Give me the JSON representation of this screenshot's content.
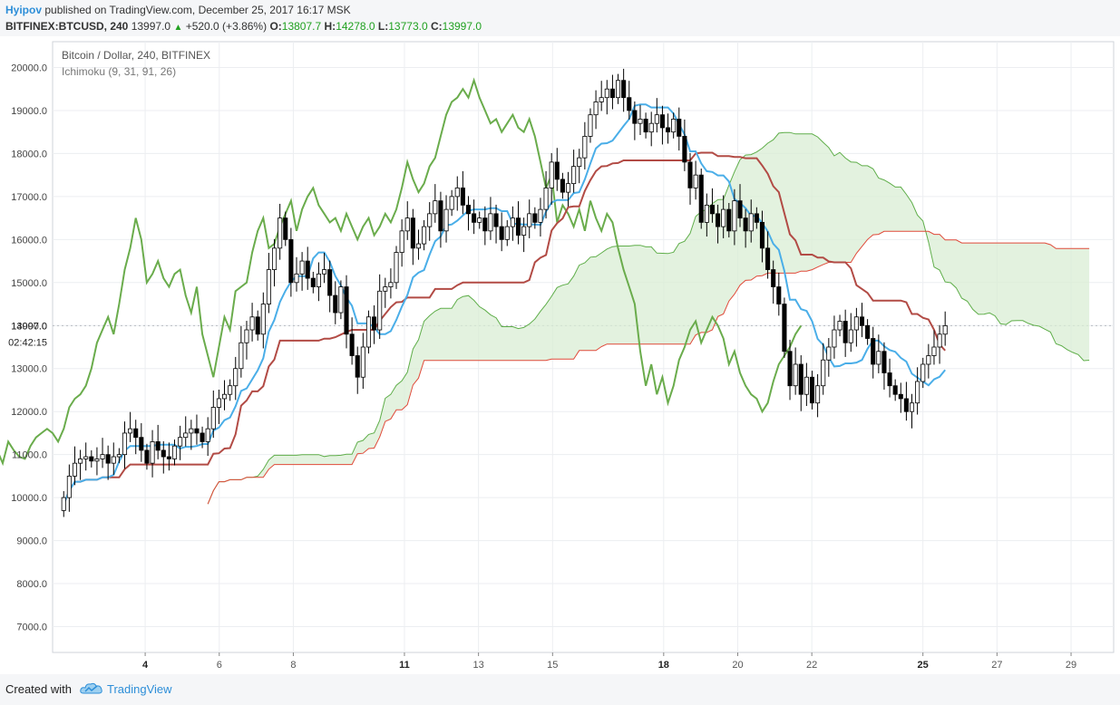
{
  "header": {
    "author": "Hyipov",
    "published": "published on TradingView.com, December 25, 2017 16:17 MSK",
    "symbol": "BITFINEX:BTCUSD, 240",
    "last": "13997.0",
    "change": "+520.0 (+3.86%)",
    "o_label": "O:",
    "o_value": "13807.7",
    "h_label": "H:",
    "h_value": "14278.0",
    "l_label": "L:",
    "l_value": "13773.0",
    "c_label": "C:",
    "c_value": "13997.0"
  },
  "legend": {
    "title": "Bitcoin / Dollar, 240, BITFINEX",
    "indicator": "Ichimoku (9, 31, 91, 26)"
  },
  "footer": {
    "created_with": "Created with",
    "brand": "TradingView"
  },
  "colors": {
    "up_candle": "#ffffff",
    "down_candle": "#000000",
    "tenkan": "#4aaee8",
    "kijun": "#b24b45",
    "chikou": "#6aac4c",
    "span_a": "#5fae4a",
    "span_b": "#e04a3a",
    "cloud_bull": "#d9eed4",
    "cloud_bear": "#fcd4d4"
  },
  "chart_data": {
    "type": "candlestick",
    "title": "Bitcoin / Dollar, 240, BITFINEX",
    "ylim": [
      6400,
      20600
    ],
    "y_ticks": [
      "20000.0",
      "19000.0",
      "18000.0",
      "17000.0",
      "16000.0",
      "15000.0",
      "14000.0",
      "13000.0",
      "12000.0",
      "11000.0",
      "10000.0",
      "9000.0",
      "8000.0",
      "7000.0"
    ],
    "y_tick_values": [
      20000,
      19000,
      18000,
      17000,
      16000,
      15000,
      14000,
      13000,
      12000,
      11000,
      10000,
      9000,
      8000,
      7000
    ],
    "price_label": "13997.0",
    "countdown_label": "02:42:15",
    "x_ticks": [
      {
        "day": 4,
        "label": "4",
        "bold": true
      },
      {
        "day": 6,
        "label": "6",
        "bold": false
      },
      {
        "day": 8,
        "label": "8",
        "bold": false
      },
      {
        "day": 11,
        "label": "11",
        "bold": true
      },
      {
        "day": 13,
        "label": "13",
        "bold": false
      },
      {
        "day": 15,
        "label": "15",
        "bold": false
      },
      {
        "day": 18,
        "label": "18",
        "bold": true
      },
      {
        "day": 20,
        "label": "20",
        "bold": false
      },
      {
        "day": 22,
        "label": "22",
        "bold": false
      },
      {
        "day": 25,
        "label": "25",
        "bold": true
      },
      {
        "day": 27,
        "label": "27",
        "bold": false
      },
      {
        "day": 29,
        "label": "29",
        "bold": false
      }
    ],
    "x_range_days": [
      1.5,
      30.15
    ],
    "closes": [
      10000,
      10500,
      10800,
      10900,
      10950,
      10850,
      10900,
      11000,
      10800,
      10950,
      11000,
      11500,
      11600,
      11400,
      11100,
      10800,
      11300,
      11100,
      10950,
      10900,
      11200,
      11400,
      11500,
      11600,
      11500,
      11300,
      11600,
      12100,
      12300,
      12400,
      12600,
      13000,
      13600,
      13900,
      14200,
      13800,
      14500,
      15300,
      15800,
      16500,
      16000,
      15000,
      15200,
      15500,
      15100,
      14900,
      15200,
      15300,
      14700,
      14300,
      14900,
      13800,
      13300,
      12800,
      13500,
      14200,
      13900,
      14800,
      14900,
      15000,
      15700,
      16200,
      16500,
      15800,
      15900,
      16300,
      16600,
      16900,
      16200,
      16700,
      17000,
      17200,
      16800,
      16600,
      16400,
      16500,
      16200,
      16600,
      16300,
      16000,
      16300,
      16500,
      16100,
      16300,
      16600,
      16400,
      16700,
      17200,
      17800,
      17400,
      17100,
      17300,
      17700,
      17900,
      18400,
      18900,
      19200,
      19300,
      19500,
      19300,
      19700,
      19300,
      19000,
      18700,
      18800,
      18500,
      18700,
      18900,
      18600,
      18500,
      18800,
      18400,
      17800,
      17200,
      17500,
      16400,
      16800,
      16600,
      16300,
      16700,
      16200,
      16900,
      16500,
      16200,
      16600,
      16400,
      15800,
      15300,
      14900,
      14500,
      13400,
      12600,
      13100,
      12400,
      12800,
      12200,
      12600,
      13200,
      13500,
      13900,
      14100,
      13600,
      13900,
      14200,
      14000,
      13700,
      13100,
      13400,
      12900,
      12600,
      12400,
      12300,
      12000,
      12200,
      12700,
      13100,
      13300,
      13500,
      13800,
      13997
    ]
  }
}
